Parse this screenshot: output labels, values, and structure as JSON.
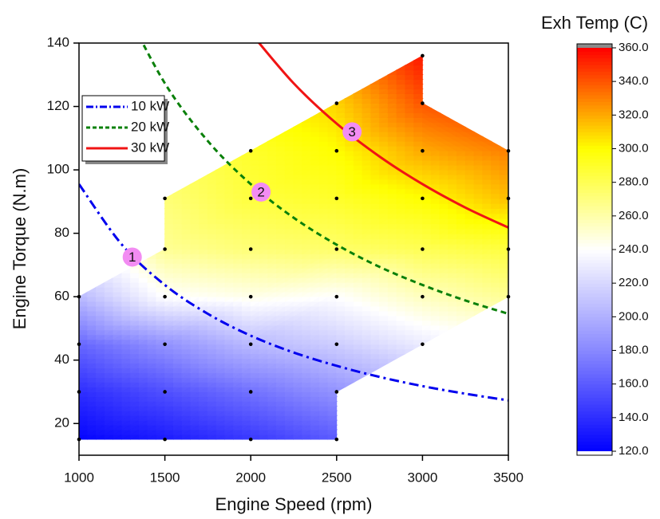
{
  "chart_data": {
    "type": "contour",
    "xlabel": "Engine Speed (rpm)",
    "ylabel": "Engine Torque (N.m)",
    "xlim": [
      1000,
      3500
    ],
    "ylim": [
      10,
      140
    ],
    "xticks": [
      1000,
      1500,
      2000,
      2500,
      3000,
      3500
    ],
    "yticks": [
      20,
      40,
      60,
      80,
      100,
      120,
      140
    ],
    "x": [
      1000,
      1500,
      2000,
      2500,
      3000,
      3500
    ],
    "y": [
      15,
      30,
      45,
      60,
      75,
      91,
      106,
      121,
      136
    ],
    "z": [
      [
        122,
        132,
        145,
        160,
        null,
        null
      ],
      [
        140,
        155,
        170,
        185,
        null,
        null
      ],
      [
        165,
        185,
        205,
        215,
        230,
        null
      ],
      [
        205,
        240,
        245,
        240,
        255,
        265
      ],
      [
        null,
        265,
        272,
        275,
        280,
        285
      ],
      [
        null,
        272,
        285,
        290,
        300,
        315
      ],
      [
        null,
        null,
        290,
        300,
        320,
        330
      ],
      [
        null,
        null,
        null,
        310,
        340,
        null
      ],
      [
        null,
        null,
        null,
        null,
        355,
        null
      ]
    ],
    "colorscale": [
      "#0000ff",
      "#8888ff",
      "#ffffff",
      "#ffff00",
      "#ff0000"
    ],
    "colorbar": {
      "title": "Exh Temp (C)",
      "zlim": [
        120,
        360
      ],
      "ticks": [
        {
          "value": 120,
          "label": "120.0"
        },
        {
          "value": 140,
          "label": "140.0"
        },
        {
          "value": 160,
          "label": "160.0"
        },
        {
          "value": 180,
          "label": "180.0"
        },
        {
          "value": 200,
          "label": "200.0"
        },
        {
          "value": 220,
          "label": "220.0"
        },
        {
          "value": 240,
          "label": "240.0"
        },
        {
          "value": 260,
          "label": "260.0"
        },
        {
          "value": 280,
          "label": "280.0"
        },
        {
          "value": 300,
          "label": "300.0"
        },
        {
          "value": 320,
          "label": "320.0"
        },
        {
          "value": 340,
          "label": "340.0"
        },
        {
          "value": 360,
          "label": "360.0"
        }
      ]
    },
    "lines": {
      "x": [
        1000,
        1250,
        1500,
        1750,
        2000,
        2250,
        2500,
        2750,
        3000,
        3250,
        3500
      ],
      "series": [
        {
          "name": "10 kW",
          "color": "#0000ee",
          "style": "dashdot",
          "values": [
            95.5,
            76.4,
            63.7,
            54.6,
            47.7,
            42.4,
            38.2,
            34.7,
            31.8,
            29.4,
            27.3
          ]
        },
        {
          "name": "20 kW",
          "color": "#0a800a",
          "style": "dash",
          "values": [
            null,
            152.8,
            127.3,
            109.1,
            95.5,
            84.9,
            76.4,
            69.4,
            63.7,
            58.8,
            54.6
          ]
        },
        {
          "name": "30 kW",
          "color": "#f01414",
          "style": "solid",
          "values": [
            null,
            null,
            null,
            null,
            143.2,
            127.3,
            114.6,
            104.2,
            95.5,
            88.1,
            81.8
          ]
        }
      ]
    },
    "annotations": [
      {
        "text": "1",
        "x": 1310,
        "y": 72.5
      },
      {
        "text": "2",
        "x": 2060,
        "y": 93
      },
      {
        "text": "3",
        "x": 2590,
        "y": 112
      }
    ],
    "annotation_color": "#f28cf2"
  }
}
